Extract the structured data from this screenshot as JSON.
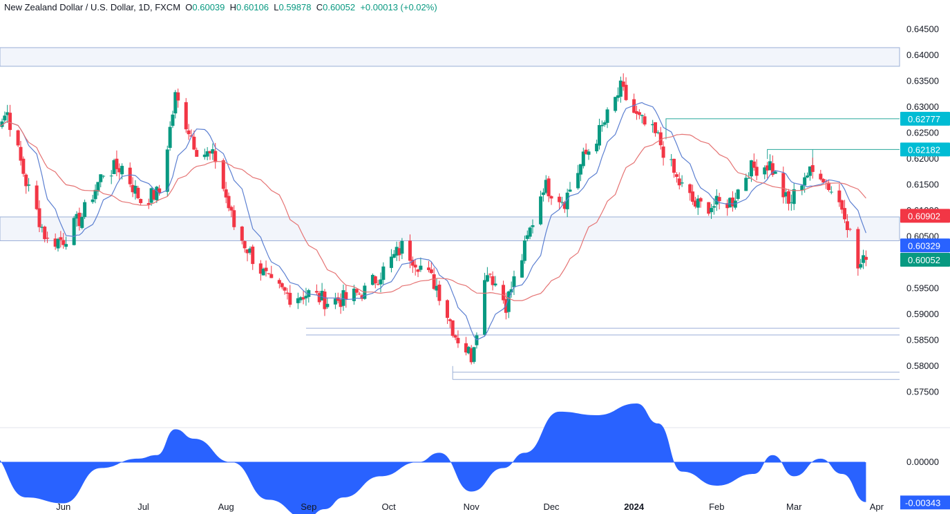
{
  "header": {
    "title": "New Zealand Dollar / U.S. Dollar, 1D, FXCM",
    "o_label": "O",
    "o_value": "0.60039",
    "h_label": "H",
    "h_value": "0.60106",
    "l_label": "L",
    "l_value": "0.59878",
    "c_label": "C",
    "c_value": "0.60052",
    "change": "+0.00013 (+0.02%)"
  },
  "colors": {
    "up": "#089981",
    "down": "#f23645",
    "ma_fast": "#5b7fd1",
    "ma_slow": "#e57373",
    "level_line": "#9aaed6",
    "zone_fill": "#f2f5fb",
    "oscillator": "#2962ff",
    "grid_text": "#131722",
    "cyan_tag": "#00bcd4",
    "red_tag": "#f23645",
    "green_tag": "#089981",
    "blue_tag": "#2962ff"
  },
  "chart_data": [
    {
      "type": "candlestick",
      "title": "New Zealand Dollar / U.S. Dollar, 1D, FXCM",
      "ylim": [
        0.5725,
        0.6475
      ],
      "y_ticks": [
        "0.64500",
        "0.64000",
        "0.63500",
        "0.63000",
        "0.62500",
        "0.62000",
        "0.61500",
        "0.61000",
        "0.60500",
        "0.60000",
        "0.59500",
        "0.59000",
        "0.58500",
        "0.58000",
        "0.57500"
      ],
      "x_ticks": [
        "Jun",
        "Jul",
        "Aug",
        "Sep",
        "Oct",
        "Nov",
        "Dec",
        "2024",
        "Feb",
        "Mar",
        "Apr"
      ],
      "bold_x_tick": "2024",
      "last_close": 0.60052,
      "price_tags": [
        {
          "value": "0.62777",
          "level": 0.62777,
          "color": "cyan"
        },
        {
          "value": "0.62182",
          "level": 0.62182,
          "color": "cyan"
        },
        {
          "value": "0.60902",
          "level": 0.60902,
          "color": "red"
        },
        {
          "value": "0.60329",
          "level": 0.60329,
          "color": "blue"
        },
        {
          "value": "0.60052",
          "level": 0.60052,
          "color": "green"
        }
      ],
      "zones": [
        {
          "top": 0.6415,
          "bottom": 0.6379
        },
        {
          "top": 0.6088,
          "bottom": 0.6042
        }
      ],
      "support_lines": [
        {
          "top": 0.5873,
          "bottom": 0.586
        },
        {
          "top": 0.5788,
          "bottom": 0.5774
        }
      ],
      "resistance_markers": [
        {
          "level": 0.62777,
          "from_month": "Jan"
        },
        {
          "level": 0.62182,
          "from_month": "Feb"
        }
      ],
      "series": [
        {
          "name": "",
          "kind": "candles",
          "interval": "1D",
          "path_dates": [
            "2023-05-04",
            "2023-05-11",
            "2023-05-18",
            "2023-05-26",
            "2023-06-01",
            "2023-06-08",
            "2023-06-16",
            "2023-06-23",
            "2023-06-30",
            "2023-07-07",
            "2023-07-13",
            "2023-07-21",
            "2023-07-28",
            "2023-08-04",
            "2023-08-11",
            "2023-08-18",
            "2023-08-25",
            "2023-09-01",
            "2023-09-08",
            "2023-09-15",
            "2023-09-22",
            "2023-09-29",
            "2023-10-06",
            "2023-10-11",
            "2023-10-19",
            "2023-10-26",
            "2023-11-01",
            "2023-11-07",
            "2023-11-14",
            "2023-11-20",
            "2023-11-28",
            "2023-12-06",
            "2023-12-13",
            "2023-12-20",
            "2023-12-27",
            "2024-01-02",
            "2024-01-10",
            "2024-01-17",
            "2024-01-24",
            "2024-01-31",
            "2024-02-07",
            "2024-02-13",
            "2024-02-21",
            "2024-02-28",
            "2024-03-05",
            "2024-03-11",
            "2024-03-15",
            "2024-03-20",
            "2024-03-25",
            "2024-03-28"
          ],
          "path_closes": [
            0.626,
            0.629,
            0.6155,
            0.604,
            0.6045,
            0.609,
            0.6175,
            0.6185,
            0.612,
            0.6135,
            0.632,
            0.622,
            0.62,
            0.607,
            0.601,
            0.5955,
            0.5935,
            0.594,
            0.5925,
            0.593,
            0.5945,
            0.5985,
            0.603,
            0.6005,
            0.5955,
            0.586,
            0.582,
            0.599,
            0.592,
            0.601,
            0.615,
            0.612,
            0.62,
            0.626,
            0.6335,
            0.628,
            0.624,
            0.616,
            0.611,
            0.611,
            0.612,
            0.618,
            0.619,
            0.611,
            0.617,
            0.6175,
            0.614,
            0.61,
            0.599,
            0.6005
          ]
        }
      ]
    },
    {
      "type": "area",
      "title": "",
      "ylim": [
        -0.0055,
        0.0045
      ],
      "y_ticks": [
        "0.00000"
      ],
      "last_value": "-0.00343",
      "series": [
        {
          "name": "",
          "dates": [
            "2023-05-04",
            "2023-05-18",
            "2023-06-01",
            "2023-06-15",
            "2023-06-29",
            "2023-07-06",
            "2023-07-13",
            "2023-07-20",
            "2023-08-03",
            "2023-08-17",
            "2023-08-31",
            "2023-09-07",
            "2023-09-14",
            "2023-09-28",
            "2023-10-12",
            "2023-10-20",
            "2023-11-01",
            "2023-11-13",
            "2023-11-21",
            "2023-12-04",
            "2023-12-18",
            "2024-01-02",
            "2024-01-10",
            "2024-01-19",
            "2024-02-01",
            "2024-02-15",
            "2024-02-22",
            "2024-03-01",
            "2024-03-11",
            "2024-03-19",
            "2024-03-28"
          ],
          "values": [
            0.0008,
            -0.003,
            -0.0035,
            -0.0005,
            0.0003,
            0.0006,
            0.0028,
            0.002,
            0.0,
            -0.0032,
            -0.0048,
            -0.004,
            -0.003,
            -0.0012,
            0.0,
            0.0008,
            -0.0025,
            -0.0005,
            0.0008,
            0.0043,
            0.004,
            0.005,
            0.0033,
            -0.0008,
            -0.002,
            -0.001,
            0.0006,
            -0.0012,
            0.0003,
            -0.001,
            -0.0034
          ]
        }
      ]
    }
  ]
}
